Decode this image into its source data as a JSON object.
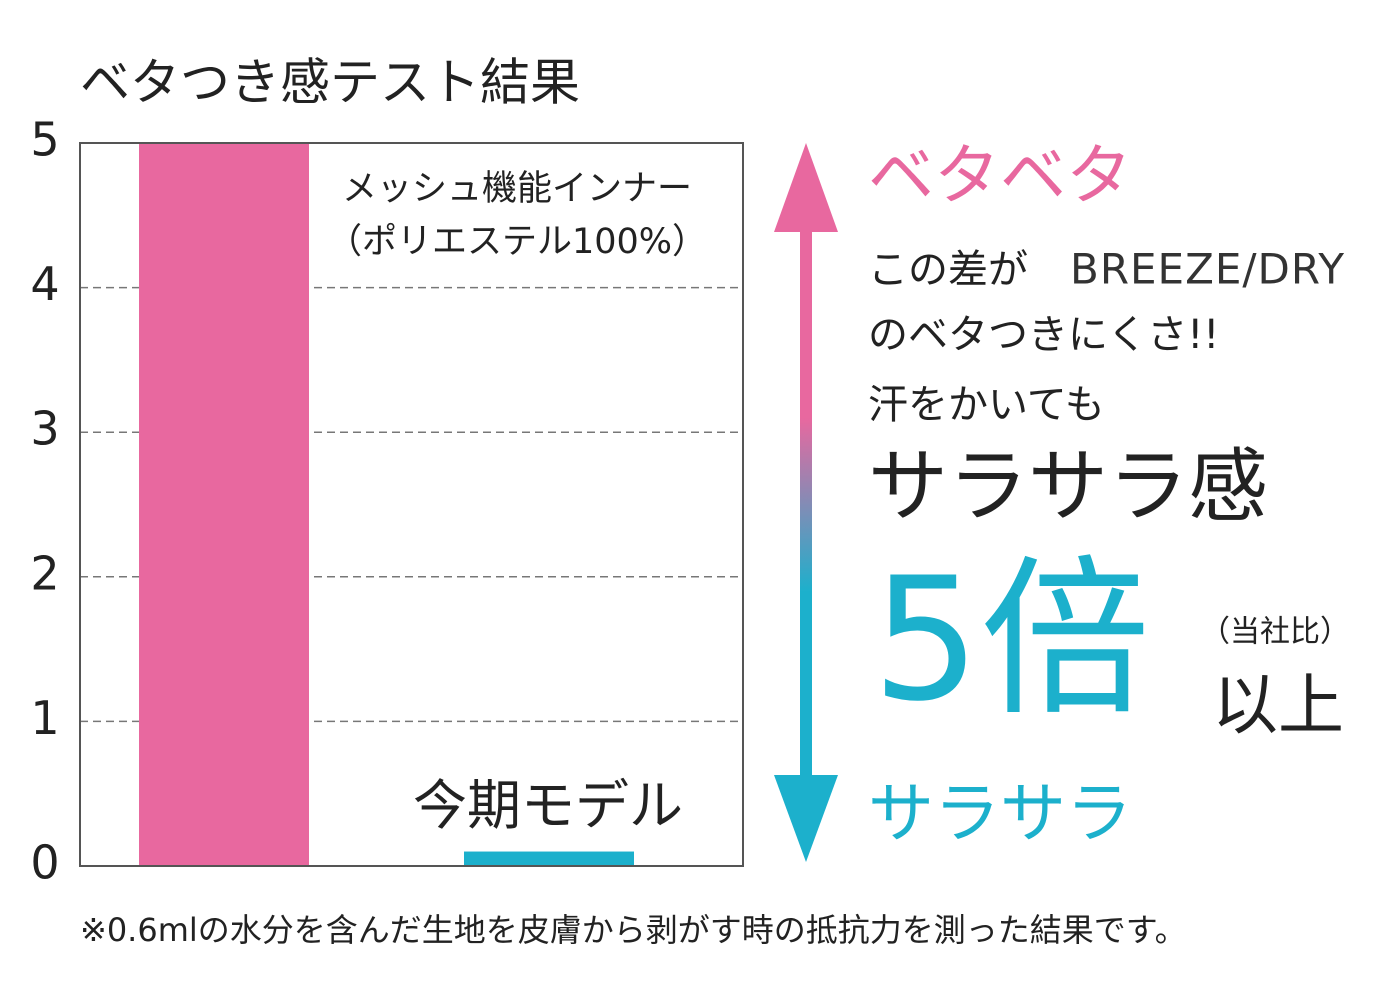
{
  "chart_data": {
    "type": "bar",
    "title": "ベタつき感テスト結果",
    "categories": [
      "メッシュ機能インナー\n（ポリエステル100%）",
      "今期モデル"
    ],
    "values": [
      5,
      0.1
    ],
    "colors": [
      "#e8689f",
      "#1cb0cc"
    ],
    "ylim": [
      0,
      5
    ],
    "yticks": [
      0,
      1,
      2,
      3,
      4,
      5
    ],
    "grid": true,
    "annotations": {
      "top": "ベタベタ",
      "line1": "この差が",
      "brand": "BREEZE/DRY",
      "line2": "のベタつきにくさ!!",
      "line3": "汗をかいても",
      "line4": "サラサラ感",
      "big": "5倍",
      "note": "（当社比）",
      "more": "以上",
      "bottom": "サラサラ"
    },
    "footnote": "※0.6mlの水分を含んだ生地を皮膚から剥がす時の抵抗力を測った結果です。"
  }
}
